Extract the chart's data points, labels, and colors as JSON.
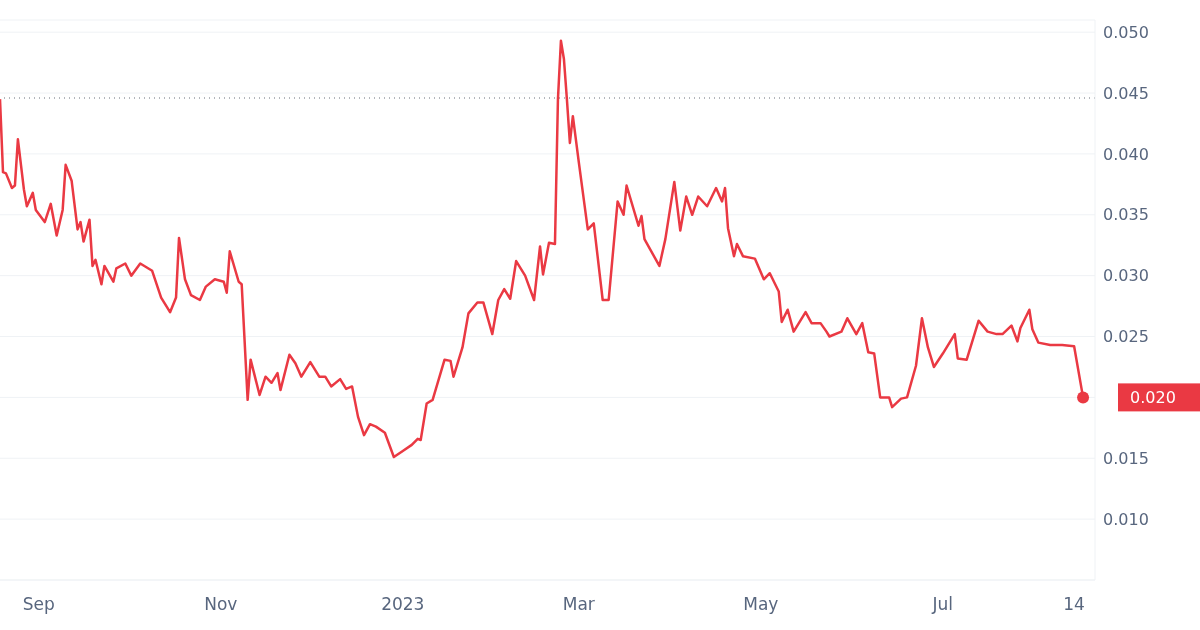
{
  "chart_data": {
    "type": "line",
    "grid": "y",
    "xlim": [
      "2022-08-19",
      "2023-08-21"
    ],
    "ylim": [
      0.005,
      0.051
    ],
    "xticks": [
      {
        "value": "2022-09-01",
        "label": "Sep"
      },
      {
        "value": "2022-11-01",
        "label": "Nov"
      },
      {
        "value": "2023-01-01",
        "label": "2023"
      },
      {
        "value": "2023-03-01",
        "label": "Mar"
      },
      {
        "value": "2023-05-01",
        "label": "May"
      },
      {
        "value": "2023-07-01",
        "label": "Jul"
      },
      {
        "value": "2023-08-14",
        "label": "14"
      }
    ],
    "yticks": [
      {
        "value": 0.01,
        "label": "0.010"
      },
      {
        "value": 0.015,
        "label": "0.015"
      },
      {
        "value": 0.02,
        "label": null
      },
      {
        "value": 0.025,
        "label": "0.025"
      },
      {
        "value": 0.03,
        "label": "0.030"
      },
      {
        "value": 0.035,
        "label": "0.035"
      },
      {
        "value": 0.04,
        "label": "0.040"
      },
      {
        "value": 0.045,
        "label": "0.045"
      },
      {
        "value": 0.05,
        "label": "0.050"
      }
    ],
    "ref_lines": [
      {
        "axis": "y",
        "value": 0.0446,
        "color": "#9aa0a6",
        "line_style": "dotted"
      }
    ],
    "annotations": [
      {
        "text": "0.020",
        "x": "2023-08-17",
        "y": 0.02
      }
    ],
    "x": [
      "2022-08-19",
      "2022-08-20",
      "2022-08-21",
      "2022-08-23",
      "2022-08-24",
      "2022-08-25",
      "2022-08-27",
      "2022-08-28",
      "2022-08-30",
      "2022-08-31",
      "2022-09-03",
      "2022-09-05",
      "2022-09-07",
      "2022-09-09",
      "2022-09-10",
      "2022-09-12",
      "2022-09-14",
      "2022-09-15",
      "2022-09-16",
      "2022-09-18",
      "2022-09-19",
      "2022-09-20",
      "2022-09-22",
      "2022-09-23",
      "2022-09-26",
      "2022-09-27",
      "2022-09-30",
      "2022-10-02",
      "2022-10-05",
      "2022-10-09",
      "2022-10-12",
      "2022-10-15",
      "2022-10-17",
      "2022-10-18",
      "2022-10-20",
      "2022-10-22",
      "2022-10-25",
      "2022-10-27",
      "2022-10-30",
      "2022-11-02",
      "2022-11-03",
      "2022-11-04",
      "2022-11-07",
      "2022-11-08",
      "2022-11-10",
      "2022-11-11",
      "2022-11-14",
      "2022-11-16",
      "2022-11-18",
      "2022-11-20",
      "2022-11-21",
      "2022-11-24",
      "2022-11-26",
      "2022-11-28",
      "2022-12-01",
      "2022-12-04",
      "2022-12-06",
      "2022-12-08",
      "2022-12-11",
      "2022-12-13",
      "2022-12-15",
      "2022-12-17",
      "2022-12-19",
      "2022-12-21",
      "2022-12-23",
      "2022-12-26",
      "2022-12-29",
      "2023-01-01",
      "2023-01-04",
      "2023-01-06",
      "2023-01-07",
      "2023-01-09",
      "2023-01-11",
      "2023-01-15",
      "2023-01-17",
      "2023-01-18",
      "2023-01-21",
      "2023-01-23",
      "2023-01-26",
      "2023-01-28",
      "2023-01-31",
      "2023-02-02",
      "2023-02-04",
      "2023-02-06",
      "2023-02-08",
      "2023-02-11",
      "2023-02-14",
      "2023-02-16",
      "2023-02-17",
      "2023-02-19",
      "2023-02-21",
      "2023-02-22",
      "2023-02-23",
      "2023-02-24",
      "2023-02-25",
      "2023-02-26",
      "2023-02-27",
      "2023-03-01",
      "2023-03-04",
      "2023-03-06",
      "2023-03-09",
      "2023-03-11",
      "2023-03-14",
      "2023-03-16",
      "2023-03-17",
      "2023-03-21",
      "2023-03-22",
      "2023-03-23",
      "2023-03-28",
      "2023-03-30",
      "2023-04-02",
      "2023-04-04",
      "2023-04-06",
      "2023-04-08",
      "2023-04-10",
      "2023-04-13",
      "2023-04-16",
      "2023-04-18",
      "2023-04-19",
      "2023-04-20",
      "2023-04-22",
      "2023-04-23",
      "2023-04-25",
      "2023-04-29",
      "2023-05-02",
      "2023-05-04",
      "2023-05-07",
      "2023-05-08",
      "2023-05-10",
      "2023-05-12",
      "2023-05-16",
      "2023-05-18",
      "2023-05-21",
      "2023-05-23",
      "2023-05-24",
      "2023-05-28",
      "2023-05-30",
      "2023-06-02",
      "2023-06-04",
      "2023-06-06",
      "2023-06-08",
      "2023-06-10",
      "2023-06-13",
      "2023-06-14",
      "2023-06-17",
      "2023-06-19",
      "2023-06-22",
      "2023-06-24",
      "2023-06-26",
      "2023-06-28",
      "2023-07-01",
      "2023-07-05",
      "2023-07-06",
      "2023-07-09",
      "2023-07-13",
      "2023-07-16",
      "2023-07-19",
      "2023-07-21",
      "2023-07-24",
      "2023-07-26",
      "2023-07-27",
      "2023-07-30",
      "2023-07-31",
      "2023-08-02",
      "2023-08-06",
      "2023-08-10",
      "2023-08-14",
      "2023-08-17"
    ],
    "series": [
      {
        "color": "#ea3943",
        "values": [
          0.0445,
          0.0385,
          0.0384,
          0.0372,
          0.0374,
          0.0412,
          0.0371,
          0.0357,
          0.0368,
          0.0354,
          0.0344,
          0.0359,
          0.0333,
          0.0354,
          0.0391,
          0.0378,
          0.0338,
          0.0344,
          0.0328,
          0.0346,
          0.0308,
          0.0313,
          0.0293,
          0.0308,
          0.0295,
          0.0306,
          0.031,
          0.03,
          0.031,
          0.0304,
          0.0282,
          0.027,
          0.0282,
          0.0331,
          0.0297,
          0.0284,
          0.028,
          0.0291,
          0.0297,
          0.0295,
          0.0286,
          0.032,
          0.0295,
          0.0293,
          0.0198,
          0.0231,
          0.0202,
          0.0217,
          0.0212,
          0.022,
          0.0206,
          0.0235,
          0.0228,
          0.0217,
          0.0229,
          0.0217,
          0.0217,
          0.0209,
          0.0215,
          0.0207,
          0.0209,
          0.0184,
          0.0169,
          0.0178,
          0.0176,
          0.0171,
          0.0151,
          0.0156,
          0.0161,
          0.0166,
          0.0165,
          0.0195,
          0.0198,
          0.0231,
          0.023,
          0.0217,
          0.0241,
          0.0269,
          0.0278,
          0.0278,
          0.0252,
          0.028,
          0.0289,
          0.0281,
          0.0312,
          0.03,
          0.028,
          0.0324,
          0.0301,
          0.0327,
          0.0326,
          0.0445,
          0.0493,
          0.0478,
          0.0445,
          0.0409,
          0.0431,
          0.0393,
          0.0338,
          0.0343,
          0.028,
          0.028,
          0.0361,
          0.035,
          0.0374,
          0.0341,
          0.0349,
          0.033,
          0.0308,
          0.033,
          0.0377,
          0.0337,
          0.0365,
          0.035,
          0.0365,
          0.0357,
          0.0372,
          0.0361,
          0.0372,
          0.0339,
          0.0316,
          0.0326,
          0.0316,
          0.0314,
          0.0297,
          0.0302,
          0.0287,
          0.0262,
          0.0272,
          0.0254,
          0.027,
          0.0261,
          0.0261,
          0.0254,
          0.025,
          0.0254,
          0.0265,
          0.0252,
          0.0261,
          0.0237,
          0.0236,
          0.02,
          0.02,
          0.0192,
          0.0199,
          0.02,
          0.0226,
          0.0265,
          0.0241,
          0.0225,
          0.0236,
          0.0252,
          0.0232,
          0.0231,
          0.0263,
          0.0254,
          0.0252,
          0.0252,
          0.0259,
          0.0246,
          0.0257,
          0.0272,
          0.0256,
          0.0245,
          0.0243,
          0.0243,
          0.0242,
          0.02
        ]
      }
    ]
  }
}
